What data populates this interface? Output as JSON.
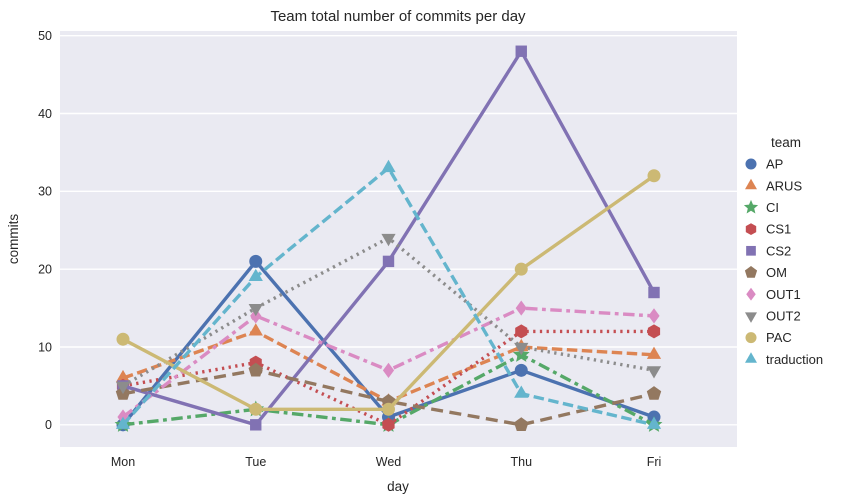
{
  "chart_data": {
    "type": "line",
    "title": "Team total number of commits per day",
    "xlabel": "day",
    "ylabel": "commits",
    "legend_title": "team",
    "legend_position": "right",
    "categories": [
      "Mon",
      "Tue",
      "Wed",
      "Thu",
      "Fri"
    ],
    "yticks": [
      0,
      10,
      20,
      30,
      40,
      50
    ],
    "ylim": [
      -2.85,
      50.6
    ],
    "grid": "horizontal white gridlines on light lavender panel (seaborn darkgrid)",
    "panel_color": "#eaeaf2",
    "gridline_color": "#ffffff",
    "series": [
      {
        "name": "AP",
        "color": "#4c72b0",
        "marker": "circle",
        "dash": "solid",
        "values": [
          0,
          21,
          1,
          7,
          1
        ]
      },
      {
        "name": "ARUS",
        "color": "#dd8452",
        "marker": "triangle-up",
        "dash": "dashed",
        "values": [
          6,
          12,
          3,
          10,
          9
        ]
      },
      {
        "name": "CI",
        "color": "#55a868",
        "marker": "star",
        "dash": "dash-dot",
        "values": [
          0,
          2,
          0,
          9,
          0
        ]
      },
      {
        "name": "CS1",
        "color": "#c44e52",
        "marker": "hexagon",
        "dash": "dotted",
        "values": [
          5,
          8,
          0,
          12,
          12
        ]
      },
      {
        "name": "CS2",
        "color": "#8172b3",
        "marker": "square",
        "dash": "solid",
        "values": [
          5,
          0,
          21,
          48,
          17
        ]
      },
      {
        "name": "OM",
        "color": "#937860",
        "marker": "pentagon",
        "dash": "long-dash",
        "values": [
          4,
          7,
          3,
          0,
          4
        ]
      },
      {
        "name": "OUT1",
        "color": "#da8bc3",
        "marker": "diamond",
        "dash": "dash-dot",
        "values": [
          1,
          14,
          7,
          15,
          14
        ]
      },
      {
        "name": "OUT2",
        "color": "#8c8c8c",
        "marker": "triangle-down",
        "dash": "dotted",
        "values": [
          5,
          15,
          24,
          10,
          7
        ]
      },
      {
        "name": "PAC",
        "color": "#ccb974",
        "marker": "circle",
        "dash": "solid",
        "values": [
          11,
          2,
          2,
          20,
          32
        ]
      },
      {
        "name": "traduction",
        "color": "#64b5cd",
        "marker": "triangle-up",
        "dash": "dashed",
        "values": [
          0,
          19,
          33,
          4,
          0
        ]
      }
    ]
  }
}
